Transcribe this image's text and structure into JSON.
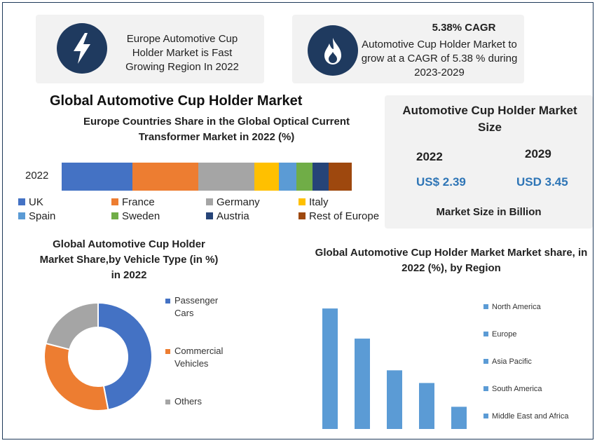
{
  "cards": {
    "europe_growth": "Europe Automotive Cup Holder Market is Fast Growing Region In 2022",
    "cagr_title": "5.38% CAGR",
    "cagr_text": "Automotive Cup Holder Market to grow at a CAGR of 5.38 % during 2023-2029"
  },
  "main_title": "Global Automotive Cup Holder Market",
  "market_size": {
    "title": "Automotive Cup Holder Market Size",
    "year1": "2022",
    "value1": "US$ 2.39",
    "year2": "2029",
    "value2": "USD 3.45",
    "footer": "Market Size in Billion"
  },
  "chart_data": [
    {
      "type": "bar",
      "title": "Europe Countries Share in the Global Optical Current Transformer Market in 2022 (%)",
      "orientation": "horizontal-stacked",
      "categories": [
        "2022"
      ],
      "series": [
        {
          "name": "UK",
          "values": [
            24.5
          ],
          "color": "#4472c4"
        },
        {
          "name": "France",
          "values": [
            22.5
          ],
          "color": "#ed7d31"
        },
        {
          "name": "Germany",
          "values": [
            19.5
          ],
          "color": "#a5a5a5"
        },
        {
          "name": "Italy",
          "values": [
            8.5
          ],
          "color": "#ffc000"
        },
        {
          "name": "Spain",
          "values": [
            6
          ],
          "color": "#5b9bd5"
        },
        {
          "name": "Sweden",
          "values": [
            5.5
          ],
          "color": "#70ad47"
        },
        {
          "name": "Austria",
          "values": [
            5.5
          ],
          "color": "#264478"
        },
        {
          "name": "Rest of Europe",
          "values": [
            8
          ],
          "color": "#9e480e"
        }
      ],
      "legend": "bottom"
    },
    {
      "type": "pie",
      "style": "donut",
      "title": "Global Automotive Cup Holder Market Share,by Vehicle Type (in %) in 2022",
      "labels": [
        "Passenger Cars",
        "Commercial Vehicles",
        "Others"
      ],
      "values": [
        47,
        32,
        21
      ],
      "colors": [
        "#4472c4",
        "#ed7d31",
        "#a5a5a5"
      ],
      "legend": "right"
    },
    {
      "type": "bar",
      "title": "Global Automotive Cup Holder Market Market share, in 2022 (%), by Region",
      "categories": [
        "North America",
        "Europe",
        "Asia Pacific",
        "South America",
        "Middle East and Africa"
      ],
      "values": [
        38,
        28.5,
        18.5,
        14.5,
        7
      ],
      "color": "#5b9bd5",
      "ylim": [
        0,
        42
      ],
      "legend": "right"
    }
  ]
}
